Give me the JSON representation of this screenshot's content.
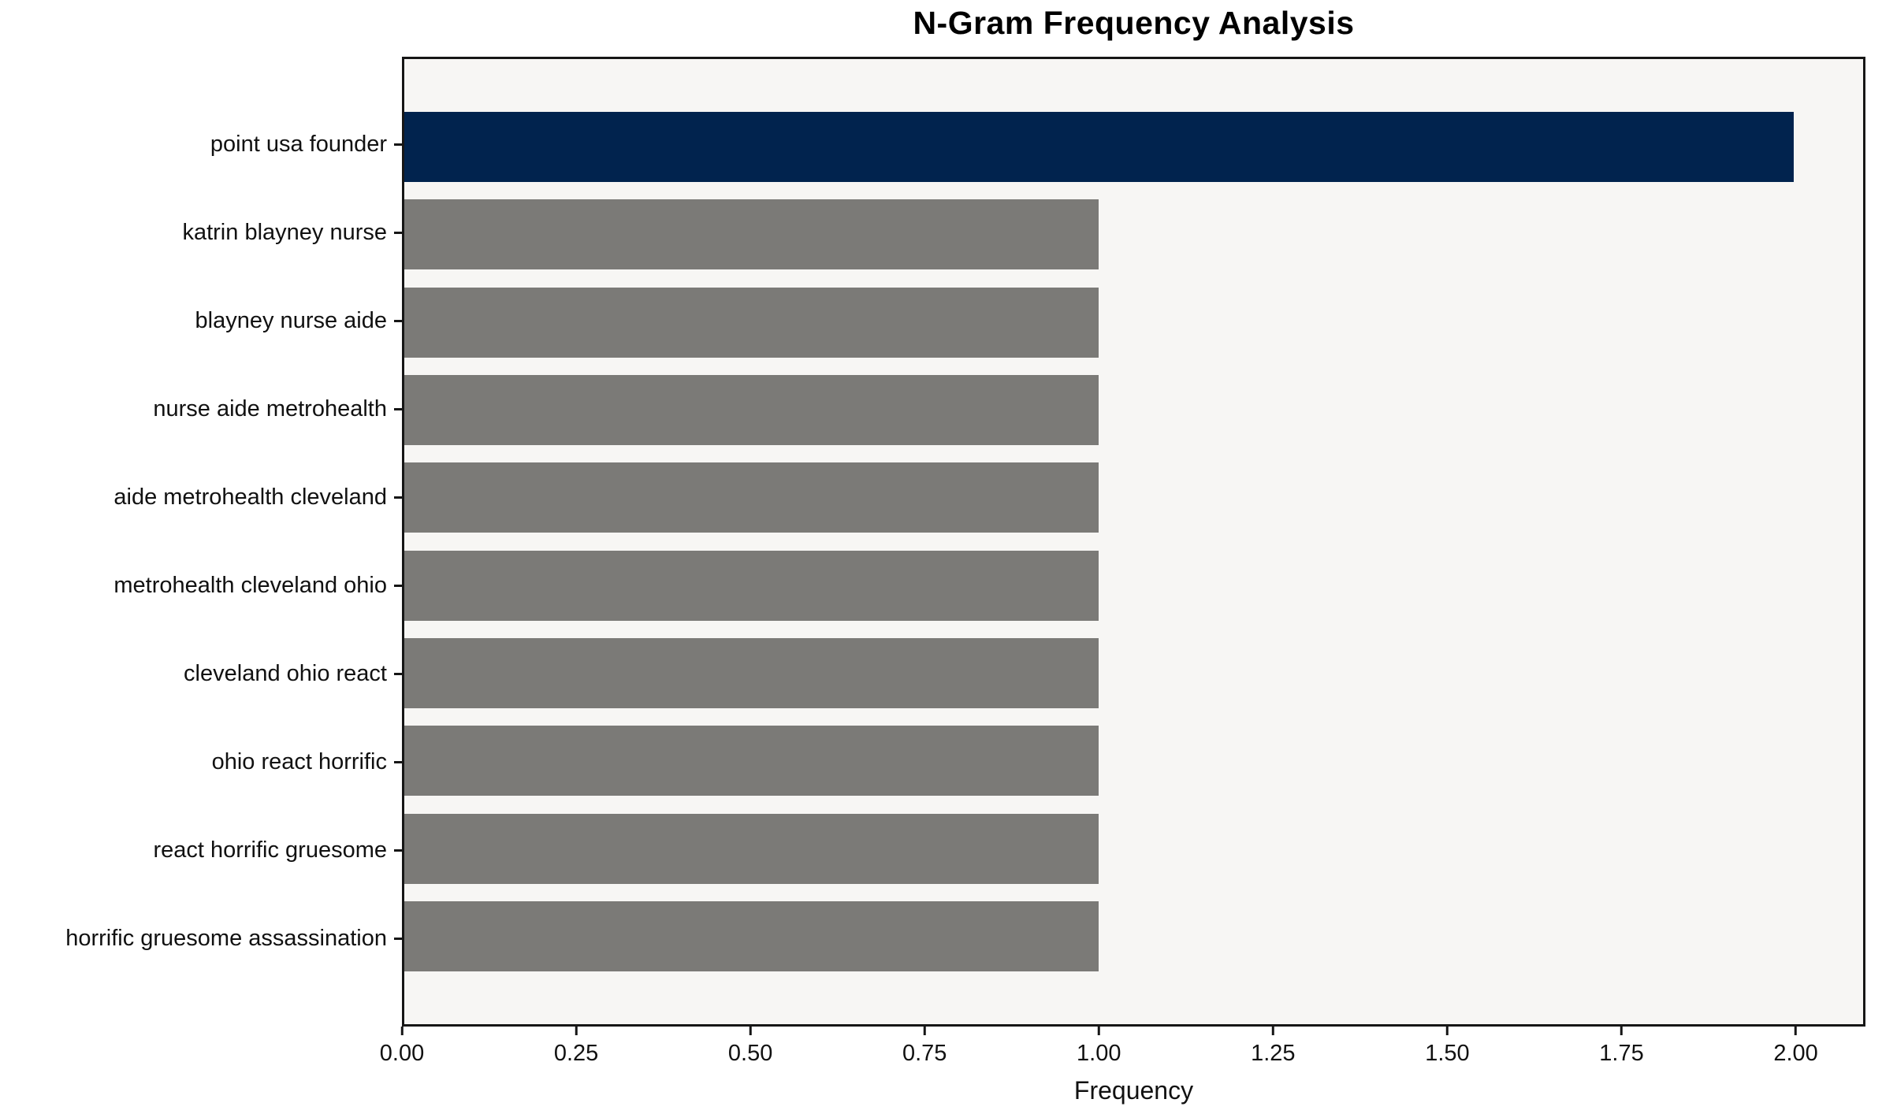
{
  "chart_data": {
    "type": "bar",
    "orientation": "horizontal",
    "title": "N-Gram Frequency Analysis",
    "xlabel": "Frequency",
    "ylabel": "",
    "categories": [
      "point usa founder",
      "katrin blayney nurse",
      "blayney nurse aide",
      "nurse aide metrohealth",
      "aide metrohealth cleveland",
      "metrohealth cleveland ohio",
      "cleveland ohio react",
      "ohio react horrific",
      "react horrific gruesome",
      "horrific gruesome assassination"
    ],
    "values": [
      2,
      1,
      1,
      1,
      1,
      1,
      1,
      1,
      1,
      1
    ],
    "bar_colors": [
      "#01234e",
      "#7b7a77",
      "#7b7a77",
      "#7b7a77",
      "#7b7a77",
      "#7b7a77",
      "#7b7a77",
      "#7b7a77",
      "#7b7a77",
      "#7b7a77"
    ],
    "highlight_color": "#01234e",
    "default_color": "#7b7a77",
    "plot_background": "#f7f6f4",
    "frame_color": "#161616",
    "xlim": [
      0,
      2.1
    ],
    "xticks": [
      0,
      0.25,
      0.5,
      0.75,
      1.0,
      1.25,
      1.5,
      1.75,
      2.0
    ],
    "xtick_labels": [
      "0.00",
      "0.25",
      "0.50",
      "0.75",
      "1.00",
      "1.25",
      "1.50",
      "1.75",
      "2.00"
    ],
    "grid": false,
    "legend": null
  }
}
